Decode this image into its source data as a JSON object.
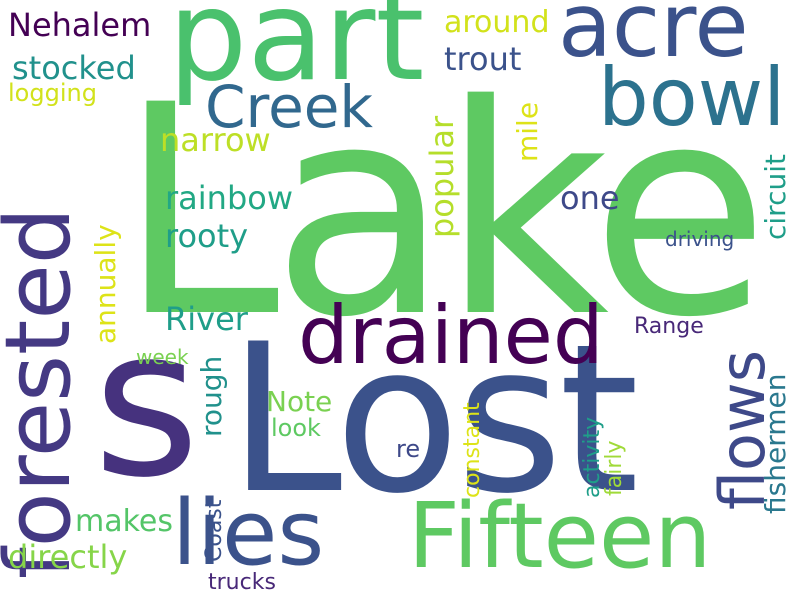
{
  "words": [
    {
      "text": "Lake",
      "color": "#5ec962"
    },
    {
      "text": "Lost",
      "color": "#3b528b"
    },
    {
      "text": "s",
      "color": "#46327e"
    },
    {
      "text": "part",
      "color": "#4ac16d"
    },
    {
      "text": "acre",
      "color": "#3b528b"
    },
    {
      "text": "bowl",
      "color": "#2c728e"
    },
    {
      "text": "Creek",
      "color": "#31688e"
    },
    {
      "text": "drained",
      "color": "#440154"
    },
    {
      "text": "Fifteen",
      "color": "#5ec962"
    },
    {
      "text": "lies",
      "color": "#3b528b"
    },
    {
      "text": "forested",
      "color": "#443983"
    },
    {
      "text": "flows",
      "color": "#3e4989"
    },
    {
      "text": "Nehalem",
      "color": "#440154"
    },
    {
      "text": "stocked",
      "color": "#21918c"
    },
    {
      "text": "logging",
      "color": "#d2e21b"
    },
    {
      "text": "around",
      "color": "#d2e21b"
    },
    {
      "text": "trout",
      "color": "#3b528b"
    },
    {
      "text": "narrow",
      "color": "#bddf26"
    },
    {
      "text": "rainbow",
      "color": "#22a884"
    },
    {
      "text": "rooty",
      "color": "#1f9e89"
    },
    {
      "text": "one",
      "color": "#3e4989"
    },
    {
      "text": "popular",
      "color": "#b5de2b"
    },
    {
      "text": "mile",
      "color": "#dde318"
    },
    {
      "text": "circuit",
      "color": "#1f9e89"
    },
    {
      "text": "driving",
      "color": "#3b528b"
    },
    {
      "text": "annually",
      "color": "#dde318"
    },
    {
      "text": "River",
      "color": "#1f9e89"
    },
    {
      "text": "Range",
      "color": "#482878"
    },
    {
      "text": "fishermen",
      "color": "#2a788e"
    },
    {
      "text": "rough",
      "color": "#21918c"
    },
    {
      "text": "week",
      "color": "#7ad151"
    },
    {
      "text": "Note",
      "color": "#7ad151"
    },
    {
      "text": "look",
      "color": "#5ec962"
    },
    {
      "text": "re",
      "color": "#3e4989"
    },
    {
      "text": "constant",
      "color": "#dde318"
    },
    {
      "text": "activity",
      "color": "#1f9e89"
    },
    {
      "text": "fairly",
      "color": "#a0da39"
    },
    {
      "text": "makes",
      "color": "#54c568"
    },
    {
      "text": "Coast",
      "color": "#3b528b"
    },
    {
      "text": "directly",
      "color": "#86d549"
    },
    {
      "text": "trucks",
      "color": "#482878"
    }
  ]
}
